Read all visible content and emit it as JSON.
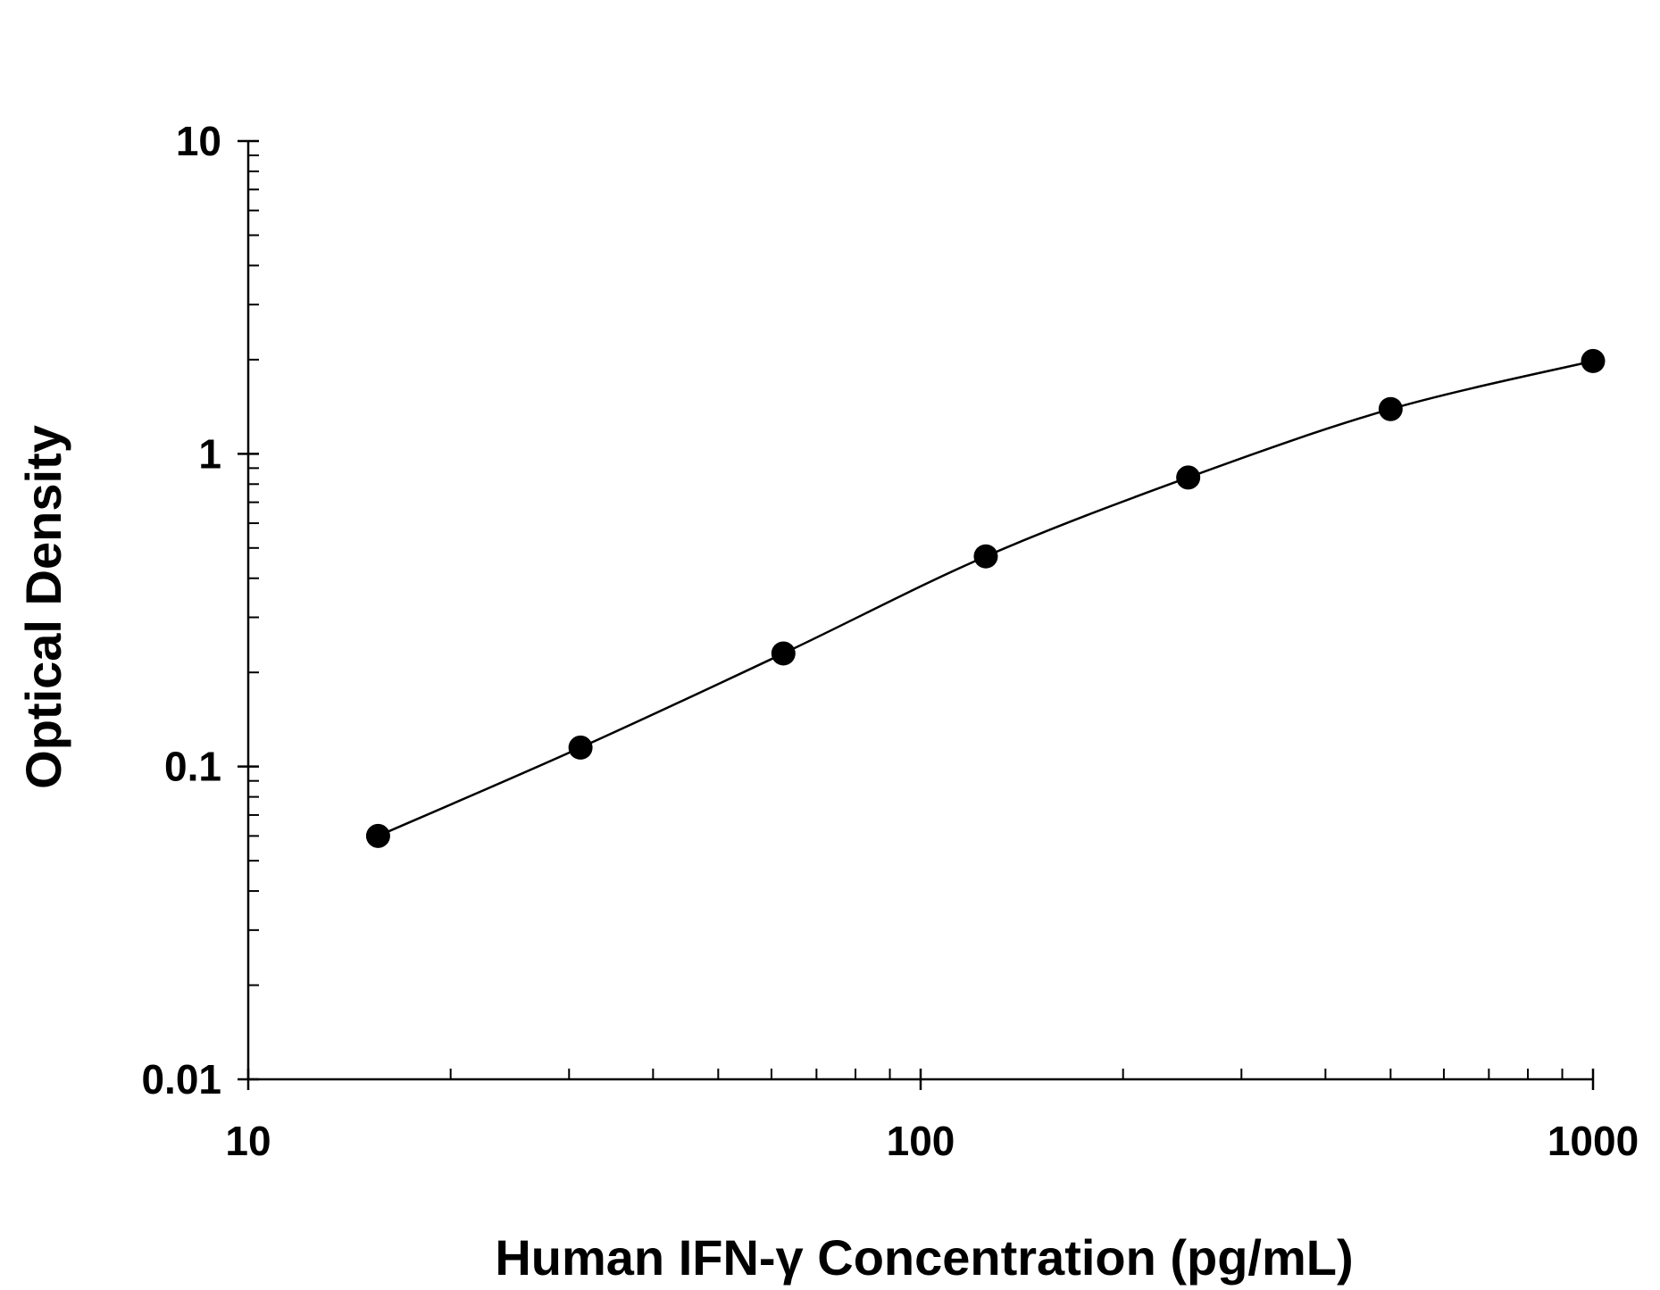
{
  "chart_data": {
    "type": "scatter",
    "x_scale": "log",
    "y_scale": "log",
    "xlabel": "Human IFN-γ Concentration (pg/mL)",
    "ylabel": "Optical Density",
    "xlim": [
      10,
      1000
    ],
    "ylim": [
      0.01,
      10
    ],
    "x_ticks": [
      {
        "value": 10,
        "label": "10"
      },
      {
        "value": 100,
        "label": "100"
      },
      {
        "value": 1000,
        "label": "1000"
      }
    ],
    "y_ticks": [
      {
        "value": 0.01,
        "label": "0.01"
      },
      {
        "value": 0.1,
        "label": "0.1"
      },
      {
        "value": 1,
        "label": "1"
      },
      {
        "value": 10,
        "label": "10"
      }
    ],
    "grid": false,
    "series": [
      {
        "x": [
          15.6,
          31.2,
          62.5,
          125,
          250,
          500,
          1000
        ],
        "y": [
          0.06,
          0.115,
          0.23,
          0.47,
          0.84,
          1.39,
          1.98
        ],
        "fit_curve": true,
        "marker_color": "#000000",
        "line_color": "#000000"
      }
    ]
  }
}
